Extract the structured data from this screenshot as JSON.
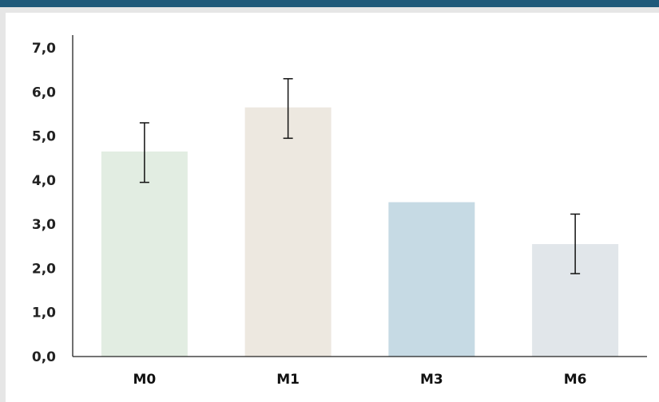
{
  "theme": {
    "top_bar_color": "#1f5a7a",
    "axis_color": "#222222"
  },
  "chart_data": {
    "type": "bar",
    "title": "",
    "xlabel": "",
    "ylabel": "",
    "categories": [
      "M0",
      "M1",
      "M3",
      "M6"
    ],
    "values": [
      4.65,
      5.65,
      3.5,
      2.55
    ],
    "error_bars": [
      {
        "low": 3.95,
        "high": 5.3
      },
      {
        "low": 4.95,
        "high": 6.3
      },
      null,
      {
        "low": 1.88,
        "high": 3.23
      }
    ],
    "bar_colors": [
      "#e2ede2",
      "#ede8e0",
      "#c6dae4",
      "#e1e6ea"
    ],
    "ylim": [
      0,
      7
    ],
    "yticks": [
      0,
      1,
      2,
      3,
      4,
      5,
      6,
      7
    ],
    "ytick_labels": [
      "0,0",
      "1,0",
      "2,0",
      "3,0",
      "4,0",
      "5,0",
      "6,0",
      "7,0"
    ],
    "grid": false,
    "legend": "none"
  }
}
